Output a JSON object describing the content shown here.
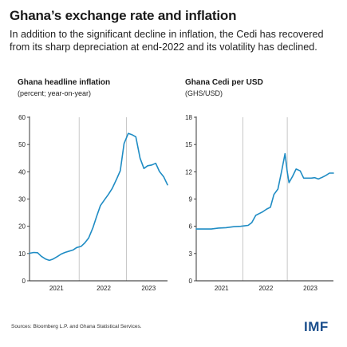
{
  "header": {
    "title": "Ghana’s exchange rate and inflation",
    "subtitle": "In addition to the significant decline in inflation, the Cedi has recovered from its sharp depreciation at end-2022 and its volatility has declined."
  },
  "footer": {
    "source": "Sources: Bloomberg L.P. and Ghana Statistical Services.",
    "logo": "IMF"
  },
  "colors": {
    "line": "#1f8cc4",
    "axis": "#222222",
    "year_divider": "#bbbbbb"
  },
  "chart_data": [
    {
      "type": "line",
      "title": "Ghana headline inflation",
      "subtitle": "(percent; year-on-year)",
      "ylim": [
        0,
        60
      ],
      "yticks": [
        0,
        10,
        20,
        30,
        40,
        50,
        60
      ],
      "xlim": [
        2020.83,
        2023.75
      ],
      "year_labels": [
        {
          "label": "2021",
          "x": 2021.4
        },
        {
          "label": "2022",
          "x": 2022.4
        },
        {
          "label": "2023",
          "x": 2023.35
        }
      ],
      "year_dividers": [
        2021.88,
        2022.88
      ],
      "series": [
        {
          "x": [
            2020.83,
            2020.92,
            2021.0,
            2021.08,
            2021.17,
            2021.25,
            2021.33,
            2021.42,
            2021.5,
            2021.58,
            2021.67,
            2021.75,
            2021.83,
            2021.92,
            2022.0,
            2022.08,
            2022.17,
            2022.25,
            2022.33,
            2022.42,
            2022.5,
            2022.58,
            2022.67,
            2022.75,
            2022.83,
            2022.92,
            2023.0,
            2023.08,
            2023.17,
            2023.25,
            2023.33,
            2023.42,
            2023.5,
            2023.58,
            2023.67,
            2023.75
          ],
          "values": [
            10.1,
            10.4,
            10.3,
            9.0,
            8.0,
            7.5,
            8.0,
            8.9,
            9.8,
            10.4,
            10.9,
            11.3,
            12.2,
            12.6,
            13.9,
            15.7,
            19.4,
            23.6,
            27.6,
            29.8,
            31.7,
            33.9,
            37.2,
            40.4,
            50.3,
            54.1,
            53.6,
            52.8,
            45.0,
            41.2,
            42.2,
            42.5,
            43.1,
            40.1,
            38.1,
            35.2
          ]
        }
      ]
    },
    {
      "type": "line",
      "title": "Ghana Cedi per USD",
      "subtitle": "(GHS/USD)",
      "ylim": [
        0,
        18
      ],
      "yticks": [
        0,
        3,
        6,
        9,
        12,
        15,
        18
      ],
      "xlim": [
        2020.83,
        2023.92
      ],
      "year_labels": [
        {
          "label": "2021",
          "x": 2021.4
        },
        {
          "label": "2022",
          "x": 2022.4
        },
        {
          "label": "2023",
          "x": 2023.4
        }
      ],
      "year_dividers": [
        2021.88,
        2022.88
      ],
      "series": [
        {
          "x": [
            2020.83,
            2021.0,
            2021.17,
            2021.33,
            2021.5,
            2021.67,
            2021.83,
            2021.92,
            2022.0,
            2022.08,
            2022.17,
            2022.25,
            2022.33,
            2022.42,
            2022.5,
            2022.58,
            2022.67,
            2022.75,
            2022.83,
            2022.88,
            2022.92,
            2023.0,
            2023.08,
            2023.17,
            2023.25,
            2023.33,
            2023.42,
            2023.5,
            2023.58,
            2023.67,
            2023.75,
            2023.83,
            2023.92
          ],
          "values": [
            5.7,
            5.7,
            5.7,
            5.8,
            5.85,
            5.95,
            6.0,
            6.05,
            6.1,
            6.4,
            7.2,
            7.4,
            7.6,
            7.9,
            8.1,
            9.5,
            10.1,
            12.0,
            14.0,
            12.0,
            10.8,
            11.5,
            12.3,
            12.1,
            11.3,
            11.3,
            11.3,
            11.35,
            11.2,
            11.4,
            11.6,
            11.85,
            11.85
          ]
        }
      ]
    }
  ]
}
